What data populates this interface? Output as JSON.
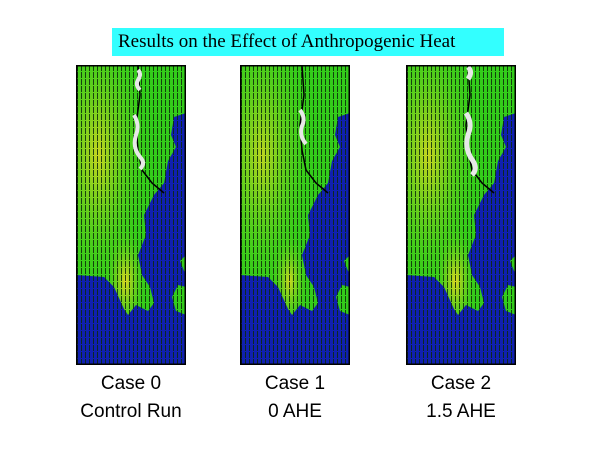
{
  "slide": {
    "title": "Results on the Effect of Anthropogenic Heat"
  },
  "panels": [
    {
      "case_label": "Case 0",
      "run_label": "Control Run"
    },
    {
      "case_label": "Case 1",
      "run_label": "0 AHE"
    },
    {
      "case_label": "Case 2",
      "run_label": "1.5 AHE"
    }
  ],
  "colors": {
    "title_background": "#33ffff",
    "land": "#33cc1a",
    "water": "#1020b0",
    "warm_spot": "#d8d820",
    "vectors": "#0a2a0a",
    "cloud": "#e8e8e8"
  }
}
